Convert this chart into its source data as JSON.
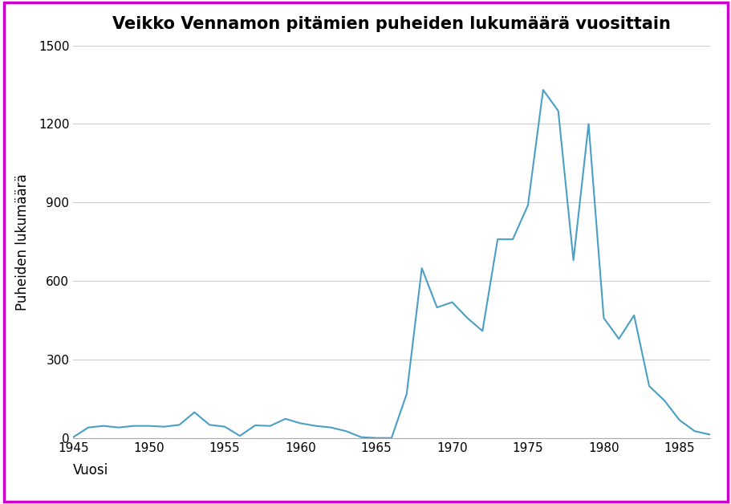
{
  "years": [
    1945,
    1946,
    1947,
    1948,
    1949,
    1950,
    1951,
    1952,
    1953,
    1954,
    1955,
    1956,
    1957,
    1958,
    1959,
    1960,
    1961,
    1962,
    1963,
    1964,
    1965,
    1966,
    1967,
    1968,
    1969,
    1970,
    1971,
    1972,
    1973,
    1974,
    1975,
    1976,
    1977,
    1978,
    1979,
    1980,
    1981,
    1982,
    1983,
    1984,
    1985,
    1986,
    1987
  ],
  "values": [
    5,
    42,
    48,
    42,
    48,
    48,
    45,
    52,
    100,
    52,
    45,
    10,
    50,
    48,
    75,
    58,
    48,
    42,
    28,
    5,
    2,
    2,
    170,
    650,
    500,
    520,
    460,
    410,
    760,
    760,
    890,
    1330,
    1250,
    680,
    1200,
    460,
    380,
    470,
    200,
    145,
    70,
    28,
    15
  ],
  "line_color": "#4a9fc4",
  "title": "Veikko Vennamon pitämien puheiden lukumäärä vuosittain",
  "ylabel": "Puheiden lukumäärä",
  "xlabel": "Vuosi",
  "ylim": [
    0,
    1500
  ],
  "xlim": [
    1945,
    1987
  ],
  "yticks": [
    0,
    300,
    600,
    900,
    1200,
    1500
  ],
  "xticks": [
    1945,
    1950,
    1955,
    1960,
    1965,
    1970,
    1975,
    1980,
    1985
  ],
  "title_fontsize": 15,
  "axis_label_fontsize": 12,
  "tick_fontsize": 11,
  "background_color": "#ffffff",
  "border_color": "#cc00cc",
  "grid_color": "#cccccc",
  "linewidth": 1.5
}
